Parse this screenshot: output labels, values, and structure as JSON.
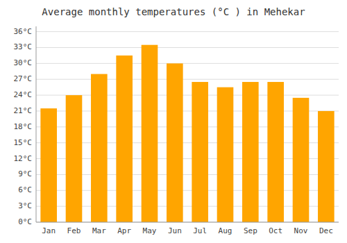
{
  "chart_data": {
    "type": "bar",
    "title": "Average monthly temperatures (°C ) in Mehekar",
    "categories": [
      "Jan",
      "Feb",
      "Mar",
      "Apr",
      "May",
      "Jun",
      "Jul",
      "Aug",
      "Sep",
      "Oct",
      "Nov",
      "Dec"
    ],
    "values": [
      21.5,
      24.0,
      28.0,
      31.5,
      33.5,
      30.0,
      26.5,
      25.5,
      26.5,
      26.5,
      23.5,
      21.0
    ],
    "color": "#FFA500",
    "ylim": [
      0,
      37
    ],
    "yticks": [
      {
        "value": 0,
        "label": "0°C"
      },
      {
        "value": 3,
        "label": "3°C"
      },
      {
        "value": 6,
        "label": "6°C"
      },
      {
        "value": 9,
        "label": "9°C"
      },
      {
        "value": 12,
        "label": "12°C"
      },
      {
        "value": 15,
        "label": "15°C"
      },
      {
        "value": 18,
        "label": "18°C"
      },
      {
        "value": 21,
        "label": "21°C"
      },
      {
        "value": 24,
        "label": "24°C"
      },
      {
        "value": 27,
        "label": "27°C"
      },
      {
        "value": 30,
        "label": "30°C"
      },
      {
        "value": 33,
        "label": "33°C"
      },
      {
        "value": 36,
        "label": "36°C"
      }
    ],
    "grid": true
  }
}
